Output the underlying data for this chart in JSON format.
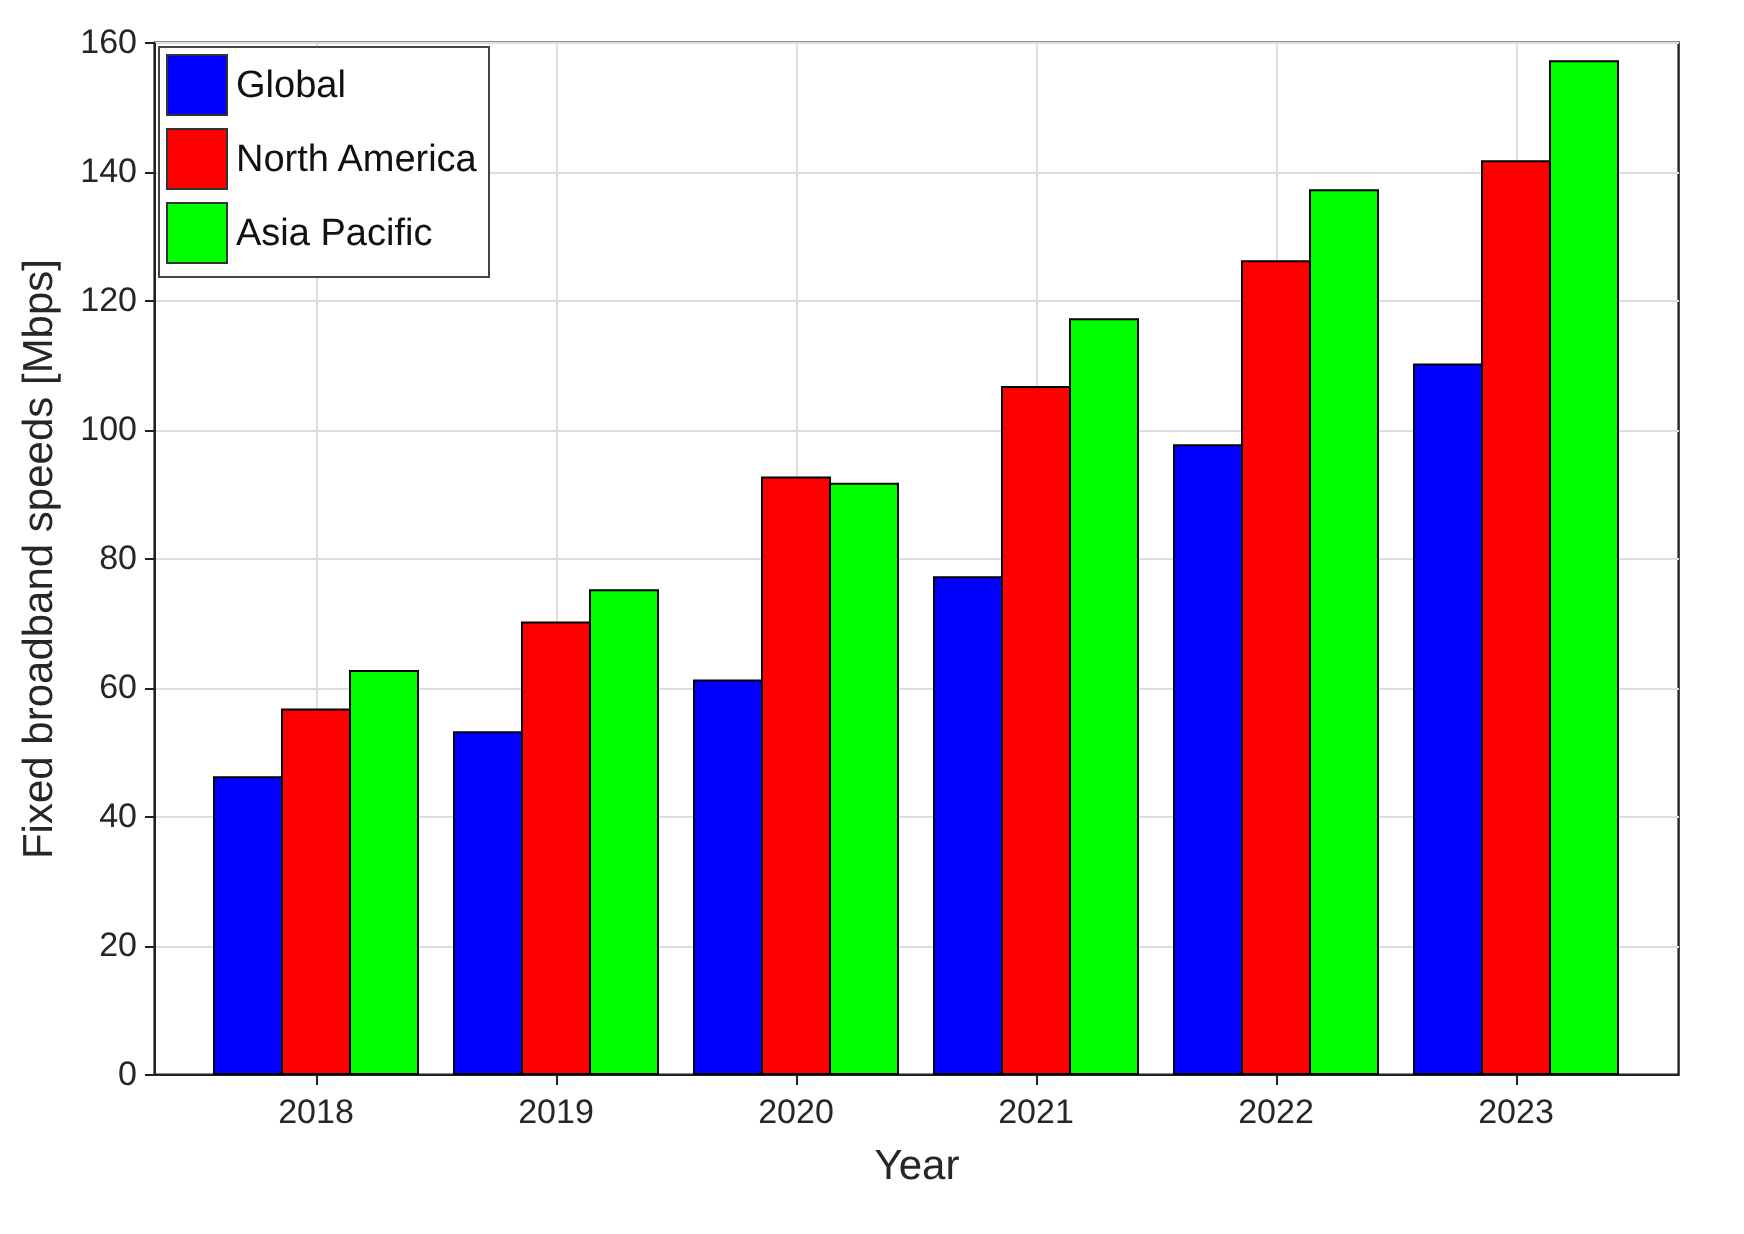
{
  "chart_data": {
    "type": "bar",
    "xlabel": "Year",
    "ylabel": "Fixed broadband speeds [Mbps]",
    "categories": [
      "2018",
      "2019",
      "2020",
      "2021",
      "2022",
      "2023"
    ],
    "series": [
      {
        "name": "Global",
        "color": "#0000ff",
        "values": [
          46,
          53,
          61,
          77,
          97.5,
          110
        ]
      },
      {
        "name": "North America",
        "color": "#ff0000",
        "values": [
          56.5,
          70,
          92.5,
          106.5,
          126,
          141.5
        ]
      },
      {
        "name": "Asia Pacific",
        "color": "#00ff00",
        "values": [
          62.5,
          75,
          91.5,
          117,
          137,
          157
        ]
      }
    ],
    "ylim": [
      0,
      160
    ],
    "yticks": [
      0,
      20,
      40,
      60,
      80,
      100,
      120,
      140,
      160
    ],
    "grid": true,
    "legend": "top left"
  }
}
